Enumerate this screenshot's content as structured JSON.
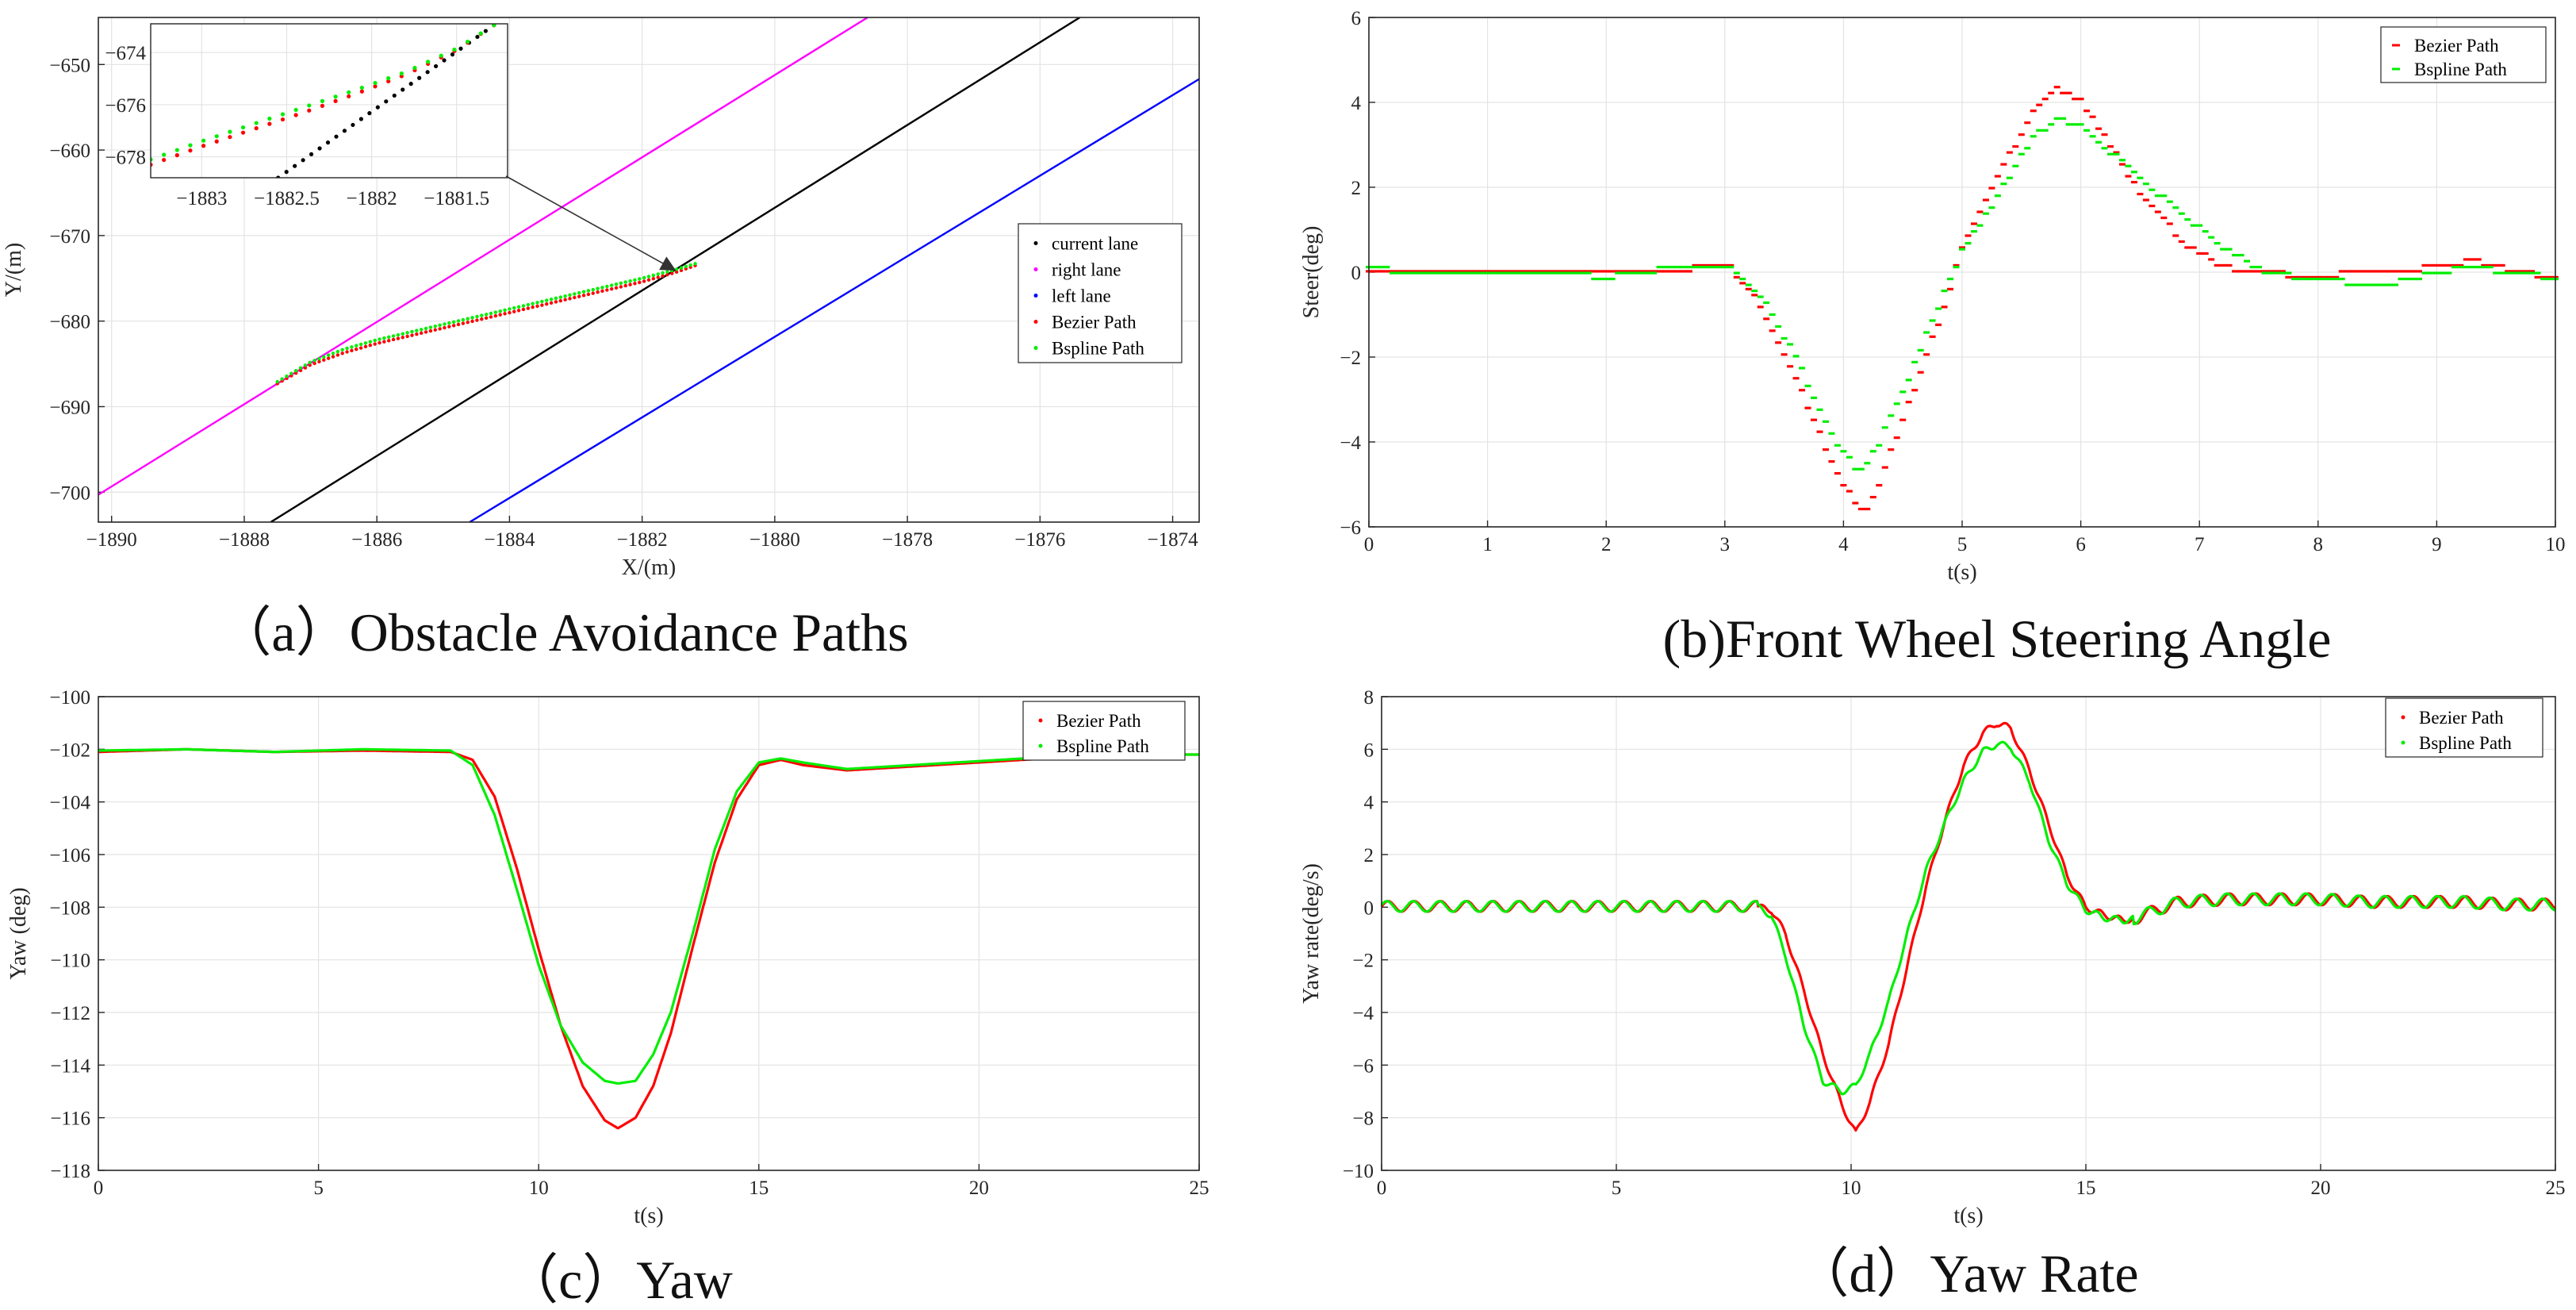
{
  "colors": {
    "bezier": "#ff0000",
    "bspline": "#00ee00",
    "current_lane": "#000000",
    "right_lane": "#ff00ff",
    "left_lane": "#0000ff",
    "arrow": "#333333"
  },
  "chart_data": [
    {
      "id": "a",
      "type": "line",
      "caption": "（a）Obstacle Avoidance Paths",
      "xlabel": "X/(m)",
      "ylabel": "Y/(m)",
      "xlim": [
        -1890.2,
        -1873.6
      ],
      "ylim": [
        -703.5,
        -644.5
      ],
      "xticks": [
        -1890,
        -1888,
        -1886,
        -1884,
        -1882,
        -1880,
        -1878,
        -1876,
        -1874
      ],
      "yticks": [
        -650,
        -660,
        -670,
        -680,
        -690,
        -700
      ],
      "grid": true,
      "legend_position": "right",
      "series": [
        {
          "name": "current lane",
          "color": "#000000",
          "style": "line",
          "x": [
            -1887.6,
            -1875.4
          ],
          "y": [
            -703.5,
            -644.5
          ]
        },
        {
          "name": "right lane",
          "color": "#ff00ff",
          "style": "line",
          "x": [
            -1890.2,
            -1878.6
          ],
          "y": [
            -700.3,
            -644.5
          ]
        },
        {
          "name": "left lane",
          "color": "#0000ff",
          "style": "line",
          "x": [
            -1884.6,
            -1873.6
          ],
          "y": [
            -703.5,
            -651.7
          ]
        },
        {
          "name": "Bezier Path",
          "color": "#ff0000",
          "style": "dots",
          "x": [
            -1887.5,
            -1887.0,
            -1886.5,
            -1886.0,
            -1885.5,
            -1885.0,
            -1884.5,
            -1884.0,
            -1883.5,
            -1883.0,
            -1882.5,
            -1882.0,
            -1881.5,
            -1881.2
          ],
          "y": [
            -687.2,
            -685.0,
            -683.6,
            -682.5,
            -681.6,
            -680.7,
            -679.8,
            -678.9,
            -678.0,
            -677.1,
            -676.2,
            -675.3,
            -674.2,
            -673.4
          ]
        },
        {
          "name": "Bspline Path",
          "color": "#00ee00",
          "style": "dots",
          "x": [
            -1887.5,
            -1887.0,
            -1886.5,
            -1886.0,
            -1885.5,
            -1885.0,
            -1884.5,
            -1884.0,
            -1883.5,
            -1883.0,
            -1882.5,
            -1882.0,
            -1881.5,
            -1881.2
          ],
          "y": [
            -687.2,
            -684.9,
            -683.4,
            -682.3,
            -681.4,
            -680.5,
            -679.6,
            -678.7,
            -677.8,
            -676.9,
            -676.0,
            -675.1,
            -674.1,
            -673.4
          ]
        }
      ],
      "inset": {
        "xlim": [
          -1883.3,
          -1881.2
        ],
        "ylim": [
          -678.8,
          -672.9
        ],
        "xticks": [
          -1883,
          -1882.5,
          -1882,
          -1881.5
        ],
        "yticks": [
          -674,
          -676,
          -678
        ],
        "series": [
          {
            "name": "current lane",
            "color": "#000000",
            "x": [
              -1882.55,
              -1881.28
            ],
            "y": [
              -678.8,
              -672.95
            ]
          },
          {
            "name": "Bezier Path",
            "color": "#ff0000",
            "x": [
              -1883.3,
              -1883.0,
              -1882.7,
              -1882.4,
              -1882.1,
              -1881.8,
              -1881.5,
              -1881.28
            ],
            "y": [
              -678.3,
              -677.6,
              -676.95,
              -676.3,
              -675.6,
              -674.85,
              -673.9,
              -672.95
            ]
          },
          {
            "name": "Bspline Path",
            "color": "#00ee00",
            "x": [
              -1883.3,
              -1883.0,
              -1882.7,
              -1882.4,
              -1882.1,
              -1881.8,
              -1881.5,
              -1881.28
            ],
            "y": [
              -678.1,
              -677.4,
              -676.75,
              -676.1,
              -675.45,
              -674.75,
              -673.85,
              -672.95
            ]
          }
        ]
      }
    },
    {
      "id": "b",
      "type": "scatter",
      "caption": "(b)Front Wheel Steering Angle",
      "xlabel": "t(s)",
      "ylabel": "Steer(deg)",
      "xlim": [
        0,
        10
      ],
      "ylim": [
        -6,
        6
      ],
      "xticks": [
        0,
        1,
        2,
        3,
        4,
        5,
        6,
        7,
        8,
        9,
        10
      ],
      "yticks": [
        6,
        4,
        2,
        0,
        -2,
        -4,
        -6
      ],
      "grid": true,
      "legend_position": "top-right",
      "series": [
        {
          "name": "Bezier Path",
          "color": "#ff0000",
          "x": [
            0,
            0.5,
            1,
            1.5,
            2,
            2.5,
            3,
            3.05,
            3.3,
            3.6,
            3.9,
            4.1,
            4.2,
            4.3,
            4.5,
            4.8,
            5.0,
            5.3,
            5.6,
            5.8,
            6.0,
            6.2,
            6.5,
            6.9,
            7.2,
            7.5,
            7.8,
            8,
            8.5,
            9,
            9.3,
            9.6,
            10
          ],
          "y": [
            0.05,
            0.05,
            -0.05,
            0.05,
            -0.05,
            0.05,
            0.1,
            0.1,
            -0.8,
            -2.5,
            -4.5,
            -5.5,
            -5.6,
            -5.0,
            -3.5,
            -1.2,
            0.5,
            2.2,
            3.8,
            4.3,
            4.0,
            3.2,
            1.8,
            0.6,
            0.1,
            0.0,
            -0.1,
            -0.1,
            0.0,
            0.1,
            0.25,
            0.05,
            -0.15
          ]
        },
        {
          "name": "Bspline Path",
          "color": "#00ee00",
          "x": [
            0,
            0.5,
            1,
            1.5,
            2,
            2.5,
            3,
            3.05,
            3.3,
            3.6,
            3.9,
            4.1,
            4.2,
            4.3,
            4.5,
            4.8,
            5.0,
            5.3,
            5.6,
            5.8,
            6.0,
            6.2,
            6.5,
            6.9,
            7.2,
            7.5,
            7.8,
            8,
            8.5,
            9,
            9.3,
            9.6,
            10
          ],
          "y": [
            0.1,
            0.0,
            -0.05,
            0.05,
            -0.1,
            0.1,
            0.15,
            0.1,
            -0.5,
            -2.0,
            -3.8,
            -4.6,
            -4.5,
            -4.0,
            -2.8,
            -0.8,
            0.5,
            1.8,
            3.2,
            3.6,
            3.5,
            3.0,
            2.2,
            1.3,
            0.6,
            0.1,
            -0.1,
            -0.15,
            -0.3,
            0.0,
            0.15,
            0.0,
            -0.1
          ]
        }
      ]
    },
    {
      "id": "c",
      "type": "line",
      "caption": "（c）Yaw",
      "xlabel": "t(s)",
      "ylabel": "Yaw (deg)",
      "xlim": [
        0,
        25
      ],
      "ylim": [
        -118,
        -100
      ],
      "xticks": [
        0,
        5,
        10,
        15,
        20,
        25
      ],
      "yticks": [
        -100,
        -102,
        -104,
        -106,
        -108,
        -110,
        -112,
        -114,
        -116,
        -118
      ],
      "grid": true,
      "legend_position": "top-right",
      "series": [
        {
          "name": "Bezier Path",
          "color": "#ff0000",
          "x": [
            0,
            2,
            4,
            6,
            8,
            8.5,
            9,
            9.5,
            10,
            10.5,
            11,
            11.5,
            11.8,
            12.2,
            12.6,
            13,
            13.5,
            14,
            14.5,
            15,
            15.5,
            16,
            17,
            18,
            19,
            20,
            21,
            22,
            23,
            24,
            25
          ],
          "y": [
            -102.1,
            -102.0,
            -102.1,
            -102.05,
            -102.1,
            -102.4,
            -103.8,
            -106.5,
            -109.6,
            -112.5,
            -114.8,
            -116.1,
            -116.4,
            -116.0,
            -114.8,
            -112.8,
            -109.5,
            -106.3,
            -103.9,
            -102.6,
            -102.4,
            -102.6,
            -102.8,
            -102.7,
            -102.6,
            -102.5,
            -102.4,
            -102.3,
            -102.25,
            -102.2,
            -102.2
          ]
        },
        {
          "name": "Bspline Path",
          "color": "#00ee00",
          "x": [
            0,
            2,
            4,
            6,
            8,
            8.5,
            9,
            9.5,
            10,
            10.5,
            11,
            11.5,
            11.8,
            12.2,
            12.6,
            13,
            13.5,
            14,
            14.5,
            15,
            15.5,
            16,
            17,
            18,
            19,
            20,
            21,
            22,
            23,
            24,
            25
          ],
          "y": [
            -102.05,
            -102.0,
            -102.1,
            -102.0,
            -102.05,
            -102.6,
            -104.5,
            -107.3,
            -110.2,
            -112.5,
            -113.9,
            -114.6,
            -114.7,
            -114.6,
            -113.6,
            -112.0,
            -109.0,
            -105.8,
            -103.6,
            -102.5,
            -102.35,
            -102.5,
            -102.75,
            -102.65,
            -102.55,
            -102.45,
            -102.35,
            -102.3,
            -102.25,
            -102.2,
            -102.2
          ]
        }
      ]
    },
    {
      "id": "d",
      "type": "line",
      "caption": "（d）Yaw Rate",
      "xlabel": "t(s)",
      "ylabel": "Yaw rate(deg/s)",
      "xlim": [
        0,
        25
      ],
      "ylim": [
        -10,
        8
      ],
      "xticks": [
        0,
        5,
        10,
        15,
        20,
        25
      ],
      "yticks": [
        8,
        6,
        4,
        2,
        0,
        -2,
        -4,
        -6,
        -8,
        -10
      ],
      "grid": true,
      "legend_position": "top-right",
      "series": [
        {
          "name": "Bezier Path",
          "color": "#ff0000",
          "x": [
            8.0,
            8.3,
            8.6,
            9.0,
            9.4,
            9.8,
            10.1,
            10.4,
            10.8,
            11.2,
            11.6,
            12.0,
            12.4,
            12.8,
            13.1,
            13.4,
            13.8,
            14.2,
            14.6,
            15.0,
            15.4,
            15.8,
            16.1,
            16.5,
            17.0,
            18.0,
            19.0,
            20.0,
            21.0,
            22.0,
            23.0,
            24.0,
            25.0
          ],
          "y": [
            0.0,
            -0.1,
            -1.0,
            -3.2,
            -5.6,
            -7.5,
            -8.6,
            -7.4,
            -5.2,
            -2.2,
            0.8,
            3.3,
            5.4,
            6.6,
            7.0,
            6.8,
            5.2,
            3.2,
            1.2,
            0.0,
            -0.3,
            -0.5,
            -0.4,
            -0.1,
            0.2,
            0.3,
            0.3,
            0.3,
            0.2,
            0.2,
            0.2,
            0.1,
            0.1
          ]
        },
        {
          "name": "Bspline Path",
          "color": "#00ee00",
          "x": [
            8.0,
            8.3,
            8.6,
            9.0,
            9.4,
            9.8,
            10.1,
            10.4,
            10.8,
            11.2,
            11.6,
            12.0,
            12.4,
            12.8,
            13.1,
            13.4,
            13.8,
            14.2,
            14.6,
            15.0,
            15.4,
            15.8,
            16.1,
            16.5,
            17.0,
            18.0,
            19.0,
            20.0,
            21.0,
            22.0,
            23.0,
            24.0,
            25.0
          ],
          "y": [
            0.0,
            -0.3,
            -1.8,
            -4.5,
            -6.6,
            -7.0,
            -6.8,
            -5.6,
            -3.6,
            -1.0,
            1.4,
            3.2,
            4.8,
            5.9,
            6.2,
            6.1,
            4.8,
            2.6,
            0.9,
            -0.1,
            -0.4,
            -0.5,
            -0.4,
            -0.1,
            0.2,
            0.3,
            0.3,
            0.3,
            0.2,
            0.2,
            0.2,
            0.1,
            0.1
          ]
        }
      ],
      "note": "Both series carry a ~0.2 deg/s oscillation with a ~0.55 s period before 8 s and after 16 s."
    }
  ]
}
